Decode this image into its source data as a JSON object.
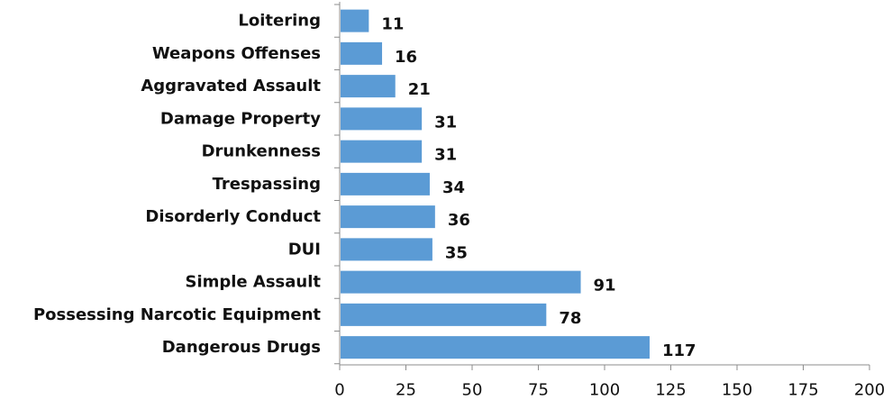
{
  "chart_data": {
    "type": "bar",
    "orientation": "horizontal",
    "categories": [
      "Loitering",
      "Weapons Offenses",
      "Aggravated Assault",
      "Damage Property",
      "Drunkenness",
      "Trespassing",
      "Disorderly Conduct",
      "DUI",
      "Simple Assault",
      "Possessing Narcotic Equipment",
      "Dangerous Drugs"
    ],
    "values": [
      11,
      16,
      21,
      31,
      31,
      34,
      36,
      35,
      91,
      78,
      117
    ],
    "data_labels": [
      "11",
      "16",
      "21",
      "31",
      "31",
      "34",
      "36",
      "35",
      "91",
      "78",
      "117"
    ],
    "xlim": [
      0,
      200
    ],
    "x_ticks": [
      0,
      25,
      50,
      75,
      100,
      125,
      150,
      175,
      200
    ],
    "x_tick_labels": [
      "0",
      "25",
      "50",
      "75",
      "100",
      "125",
      "150",
      "175",
      "200"
    ],
    "title": "",
    "xlabel": "",
    "ylabel": "",
    "grid": false,
    "legend": "none",
    "bar_color": "#5b9bd5",
    "axis_color": "#8c8c8c"
  }
}
